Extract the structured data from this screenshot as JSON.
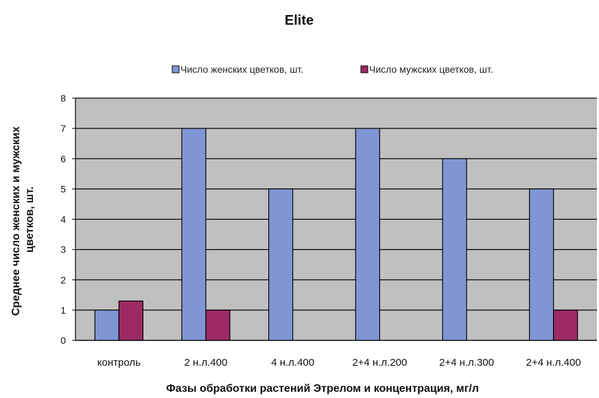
{
  "chart_data": {
    "type": "bar",
    "title": "Elite",
    "xlabel": "Фазы обработки растений Этрелом и концентрация, мг/л",
    "ylabel_lines": [
      "Среднее число женских и мужских",
      "цветков, шт."
    ],
    "categories": [
      "контроль",
      "2 н.л.400",
      "4 н.л.400",
      "2+4 н.л.200",
      "2+4 н.л.300",
      "2+4 н.л.400"
    ],
    "series": [
      {
        "name": "Число женских цветков, шт.",
        "values": [
          1,
          7,
          5,
          7,
          6,
          5
        ],
        "color": "#8096d4"
      },
      {
        "name": "Число мужских цветков, шт.",
        "values": [
          1.3,
          1,
          0,
          0,
          0,
          1
        ],
        "color": "#9b2a63"
      }
    ],
    "ylim": [
      0,
      8
    ],
    "yticks": [
      0,
      1,
      2,
      3,
      4,
      5,
      6,
      7,
      8
    ],
    "grid": true,
    "legend_position": "top",
    "plot_background": "#c0c0c0"
  }
}
